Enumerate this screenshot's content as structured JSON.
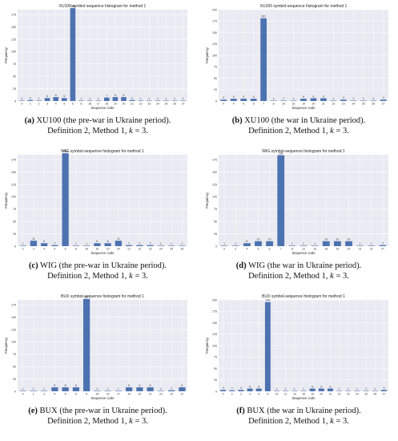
{
  "figure": {
    "panels": [
      {
        "id": "a",
        "caption": {
          "letter": "(a)",
          "line1": "XU100 (the pre-war in Ukraine period).",
          "line2_prefix": "Definition 2, Method 1, ",
          "k_symbol": "k",
          "line2_suffix": " = 3."
        },
        "chart_data": {
          "type": "bar",
          "title": "XU100 symbol-sequence histogram for method 1",
          "xlabel": "Sequence code",
          "ylabel": "Frequency",
          "ylim": [
            0,
            185
          ],
          "yticks": [
            0,
            25,
            50,
            75,
            100,
            125,
            150,
            175
          ],
          "grid": true,
          "categories": [
            "0",
            "1",
            "2",
            "3",
            "4",
            "5",
            "6",
            "8",
            "18",
            "17",
            "18",
            "19",
            "20",
            "21",
            "22",
            "23",
            "24",
            "25",
            "26",
            "27"
          ],
          "values": [
            1,
            2,
            1,
            6,
            8,
            6,
            188,
            1,
            1,
            1,
            7,
            8,
            8,
            2,
            1,
            1,
            1,
            1,
            1,
            1
          ],
          "labels": [
            "1",
            "2",
            "1",
            "6",
            "8",
            "6",
            "188",
            "1",
            "1",
            "1",
            "7",
            "8",
            "8",
            "2",
            "1",
            "1",
            "1",
            "1",
            "1",
            "1"
          ]
        }
      },
      {
        "id": "b",
        "caption": {
          "letter": "(b)",
          "line1": "XU100 (the war in Ukraine period).",
          "line2_prefix": "Definition 2, Method 1, ",
          "k_symbol": "k",
          "line2_suffix": " = 3."
        },
        "chart_data": {
          "type": "bar",
          "title": "XU100 symbol-sequence histogram for method 1",
          "xlabel": "Sequence code",
          "ylabel": "Frequency",
          "ylim": [
            0,
            200
          ],
          "yticks": [
            0,
            25,
            50,
            75,
            100,
            125,
            150,
            175,
            200
          ],
          "grid": true,
          "categories": [
            "0",
            "4",
            "5",
            "6",
            "7",
            "8",
            "10",
            "16",
            "19",
            "20",
            "21",
            "22",
            "23",
            "24",
            "25",
            "26",
            "27"
          ],
          "values": [
            3,
            5,
            5,
            5,
            181,
            1,
            1,
            1,
            5,
            6,
            6,
            1,
            3,
            1,
            1,
            1,
            3
          ],
          "labels": [
            "3",
            "5",
            "5",
            "5",
            "181",
            "1",
            "1",
            "1",
            "5",
            "6",
            "6",
            "1",
            "3",
            "1",
            "1",
            "1",
            "3"
          ]
        }
      },
      {
        "id": "c",
        "caption": {
          "letter": "(c)",
          "line1": "WIG (the pre-war in Ukraine period).",
          "line2_prefix": "Definition 2, Method 1, ",
          "k_symbol": "k",
          "line2_suffix": " = 3."
        },
        "chart_data": {
          "type": "bar",
          "title": "WIG symbol-sequence histogram for method 1",
          "xlabel": "Sequence code",
          "ylabel": "Frequency",
          "ylim": [
            0,
            185
          ],
          "yticks": [
            0,
            25,
            50,
            75,
            100,
            125,
            150,
            175
          ],
          "grid": true,
          "categories": [
            "2",
            "3",
            "4",
            "5",
            "6",
            "8",
            "16",
            "18",
            "19",
            "20",
            "21",
            "22",
            "23",
            "24",
            "25",
            "26"
          ],
          "values": [
            1,
            11,
            6,
            2,
            188,
            1,
            1,
            6,
            6,
            11,
            2,
            2,
            2,
            1,
            1,
            1
          ],
          "labels": [
            "1",
            "11",
            "6",
            "2",
            "188",
            "1",
            "1",
            "6",
            "6",
            "11",
            "2",
            "2",
            "2",
            "1",
            "1",
            "1"
          ]
        }
      },
      {
        "id": "d",
        "caption": {
          "letter": "(d)",
          "line1": "WIG (the war in Ukraine period).",
          "line2_prefix": "Definition 2, Method 1, ",
          "k_symbol": "k",
          "line2_suffix": " = 3."
        },
        "chart_data": {
          "type": "bar",
          "title": "WIG symbol-sequence histogram for method 1",
          "xlabel": "Sequence code",
          "ylabel": "Frequency",
          "ylim": [
            0,
            185
          ],
          "yticks": [
            0,
            25,
            50,
            75,
            100,
            125,
            150,
            175
          ],
          "grid": true,
          "categories": [
            "0",
            "2",
            "4",
            "5",
            "6",
            "7",
            "8",
            "13",
            "16",
            "18",
            "19",
            "20",
            "21",
            "22",
            "27"
          ],
          "values": [
            1,
            1,
            6,
            10,
            10,
            184,
            1,
            1,
            1,
            10,
            10,
            10,
            1,
            1,
            2
          ],
          "labels": [
            "1",
            "1",
            "6",
            "10",
            "10",
            "184",
            "1",
            "1",
            "1",
            "10",
            "10",
            "10",
            "1",
            "1",
            "2"
          ]
        }
      },
      {
        "id": "e",
        "caption": {
          "letter": "(e)",
          "line1": "BUX (the pre-war in Ukraine period).",
          "line2_prefix": "Definition 2, Method 1, ",
          "k_symbol": "k",
          "line2_suffix": " = 3."
        },
        "chart_data": {
          "type": "bar",
          "title": "BUX symbol-sequence histogram for method 1",
          "xlabel": "Sequence code",
          "ylabel": "Frequency",
          "ylim": [
            0,
            185
          ],
          "yticks": [
            0,
            25,
            50,
            75,
            100,
            125,
            150,
            175
          ],
          "grid": true,
          "categories": [
            "0",
            "1",
            "3",
            "4",
            "5",
            "6",
            "8",
            "15",
            "16",
            "17",
            "19",
            "20",
            "21",
            "23",
            "24",
            "27"
          ],
          "values": [
            1,
            1,
            1,
            8,
            8,
            8,
            187,
            1,
            1,
            1,
            8,
            8,
            8,
            1,
            2,
            8
          ],
          "labels": [
            "1",
            "1",
            "1",
            "8",
            "8",
            "8",
            "187",
            "1",
            "1",
            "1",
            "8",
            "8",
            "8",
            "1",
            "2",
            "8"
          ]
        }
      },
      {
        "id": "f",
        "caption": {
          "letter": "(f)",
          "line1": "BUX (the war in Ukraine period).",
          "line2_prefix": "Definition 2, Method 1, ",
          "k_symbol": "k",
          "line2_suffix": " = 3."
        },
        "chart_data": {
          "type": "bar",
          "title": "BUX symbol-sequence histogram for method 1",
          "xlabel": "Sequence code",
          "ylabel": "Frequency",
          "ylim": [
            0,
            200
          ],
          "yticks": [
            0,
            25,
            50,
            75,
            100,
            125,
            150,
            175,
            200
          ],
          "grid": true,
          "categories": [
            "0",
            "2",
            "3",
            "4",
            "5",
            "6",
            "10",
            "11",
            "16",
            "18",
            "19",
            "20",
            "21",
            "22",
            "23",
            "24",
            "25",
            "26",
            "27"
          ],
          "values": [
            3,
            2,
            3,
            6,
            6,
            195,
            1,
            1,
            1,
            1,
            6,
            6,
            6,
            1,
            1,
            1,
            1,
            1,
            3
          ],
          "labels": [
            "3",
            "2",
            "3",
            "6",
            "6",
            "195",
            "1",
            "1",
            "1",
            "1",
            "6",
            "6",
            "6",
            "1",
            "1",
            "1",
            "1",
            "1",
            "3"
          ]
        }
      }
    ],
    "colors": {
      "bar": "#4c72b0",
      "plot_bg": "#eaeaf2",
      "grid": "#ffffff",
      "text": "#333333"
    }
  }
}
